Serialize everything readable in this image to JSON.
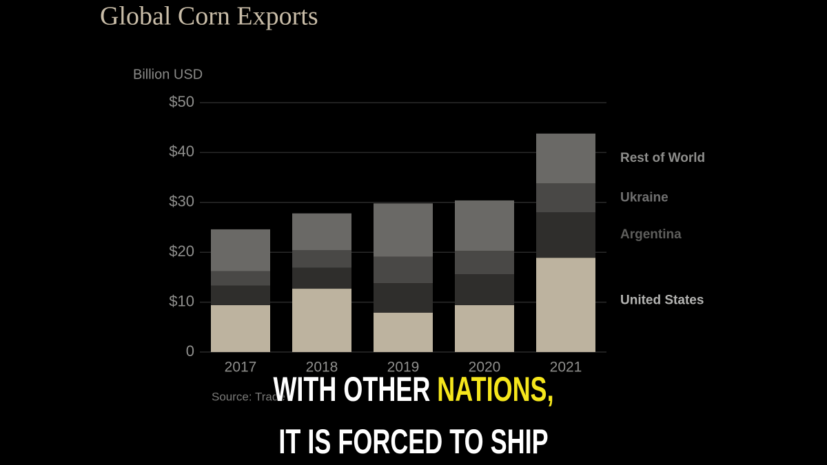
{
  "chart_data": {
    "type": "stacked_bar",
    "title": "Global Corn Exports",
    "y_axis_label": "Billion USD",
    "categories": [
      "2017",
      "2018",
      "2019",
      "2020",
      "2021"
    ],
    "series": [
      {
        "name": "United States",
        "color": "#bdb39f",
        "values": [
          9.4,
          12.7,
          7.9,
          9.4,
          18.9
        ]
      },
      {
        "name": "Argentina",
        "color": "#2f2e2c",
        "values": [
          3.9,
          4.2,
          5.9,
          6.2,
          9.1
        ]
      },
      {
        "name": "Ukraine",
        "color": "#494846",
        "values": [
          2.9,
          3.5,
          5.3,
          4.7,
          5.8
        ]
      },
      {
        "name": "Rest of World",
        "color": "#6a6966",
        "values": [
          8.4,
          7.4,
          10.7,
          10.1,
          10.0
        ]
      }
    ],
    "ylim": [
      0,
      50
    ],
    "yticks": [
      0,
      {
        "value": 10,
        "label": "$10"
      },
      {
        "value": 20,
        "label": "$20"
      },
      {
        "value": 30,
        "label": "$30"
      },
      {
        "value": 40,
        "label": "$40"
      },
      {
        "value": 50,
        "label": "$50"
      }
    ],
    "grid": true,
    "source": "Source: Trade"
  },
  "captions": [
    {
      "parts": [
        "WITH OTHER ",
        "NATIONS,"
      ]
    },
    {
      "parts": [
        "IT IS FORCED TO SHIP"
      ]
    }
  ]
}
